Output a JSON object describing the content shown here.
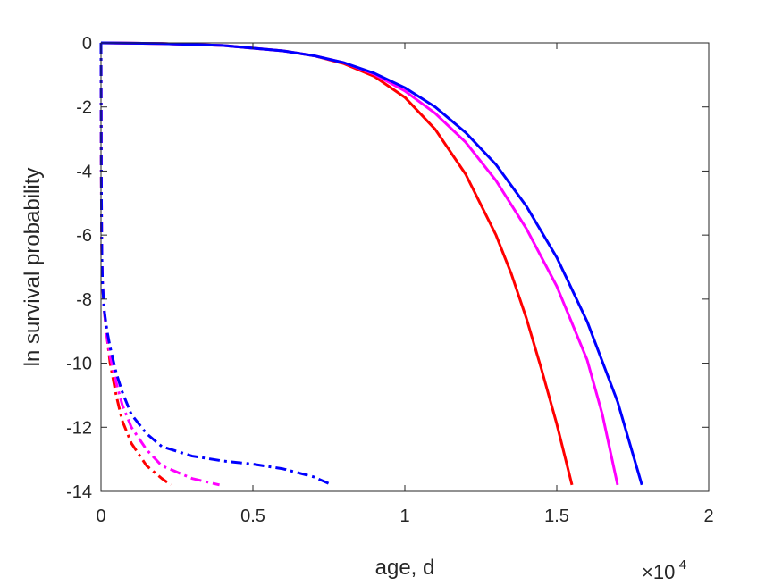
{
  "chart_data": {
    "type": "line",
    "xlabel": "age, d",
    "ylabel": "ln survival probability",
    "x_multiplier_label": {
      "base": "×10",
      "exponent": "4"
    },
    "xlim": [
      0,
      2
    ],
    "ylim": [
      -14,
      0
    ],
    "x_ticks": [
      0,
      0.5,
      1,
      1.5,
      2
    ],
    "x_tick_labels": [
      "0",
      "0.5",
      "1",
      "1.5",
      "2"
    ],
    "y_ticks": [
      0,
      -2,
      -4,
      -6,
      -8,
      -10,
      -12,
      -14
    ],
    "y_tick_labels": [
      "0",
      "-2",
      "-4",
      "-6",
      "-8",
      "-10",
      "-12",
      "-14"
    ],
    "grid": false,
    "legend": false,
    "series": [
      {
        "color": "#ff0000",
        "style": "solid",
        "x": [
          0,
          0.2,
          0.4,
          0.6,
          0.7,
          0.8,
          0.9,
          1.0,
          1.1,
          1.2,
          1.3,
          1.35,
          1.4,
          1.45,
          1.5,
          1.55
        ],
        "y": [
          0,
          -0.02,
          -0.08,
          -0.25,
          -0.4,
          -0.65,
          -1.05,
          -1.7,
          -2.7,
          -4.1,
          -6.0,
          -7.2,
          -8.6,
          -10.2,
          -11.9,
          -13.8
        ]
      },
      {
        "color": "#ff00ff",
        "style": "solid",
        "x": [
          0,
          0.2,
          0.4,
          0.6,
          0.7,
          0.8,
          0.9,
          1.0,
          1.1,
          1.2,
          1.3,
          1.4,
          1.5,
          1.6,
          1.65,
          1.7
        ],
        "y": [
          0,
          -0.02,
          -0.08,
          -0.25,
          -0.4,
          -0.62,
          -0.98,
          -1.5,
          -2.2,
          -3.1,
          -4.3,
          -5.8,
          -7.6,
          -9.9,
          -11.6,
          -13.8
        ]
      },
      {
        "color": "#0000ff",
        "style": "solid",
        "x": [
          0,
          0.2,
          0.4,
          0.6,
          0.7,
          0.8,
          0.9,
          1.0,
          1.1,
          1.2,
          1.3,
          1.4,
          1.5,
          1.6,
          1.7,
          1.78
        ],
        "y": [
          0,
          -0.02,
          -0.08,
          -0.25,
          -0.4,
          -0.62,
          -0.95,
          -1.4,
          -2.0,
          -2.8,
          -3.8,
          -5.1,
          -6.7,
          -8.7,
          -11.2,
          -13.8
        ]
      },
      {
        "color": "#ff0000",
        "style": "dashdot",
        "x": [
          0.0,
          0.0005,
          0.001,
          0.002,
          0.003,
          0.005,
          0.01,
          0.02,
          0.03,
          0.05,
          0.07,
          0.1,
          0.15,
          0.2,
          0.23
        ],
        "y": [
          0,
          -2.0,
          -4.0,
          -6.0,
          -6.8,
          -7.5,
          -8.3,
          -9.2,
          -10.0,
          -11.0,
          -11.8,
          -12.5,
          -13.2,
          -13.6,
          -13.8
        ]
      },
      {
        "color": "#ff00ff",
        "style": "dashdot",
        "x": [
          0.0,
          0.0005,
          0.001,
          0.002,
          0.003,
          0.005,
          0.01,
          0.02,
          0.03,
          0.05,
          0.07,
          0.1,
          0.15,
          0.2,
          0.3,
          0.39
        ],
        "y": [
          0,
          -2.0,
          -4.0,
          -6.0,
          -6.8,
          -7.5,
          -8.3,
          -9.2,
          -9.8,
          -10.6,
          -11.3,
          -12.0,
          -12.7,
          -13.2,
          -13.6,
          -13.8
        ]
      },
      {
        "color": "#0000ff",
        "style": "dashdot",
        "x": [
          0.0,
          0.0005,
          0.001,
          0.002,
          0.003,
          0.005,
          0.01,
          0.02,
          0.03,
          0.05,
          0.07,
          0.1,
          0.15,
          0.2,
          0.3,
          0.4,
          0.5,
          0.6,
          0.7,
          0.76
        ],
        "y": [
          0,
          -2.0,
          -4.0,
          -6.0,
          -6.8,
          -7.5,
          -8.3,
          -9.0,
          -9.5,
          -10.3,
          -10.9,
          -11.6,
          -12.2,
          -12.6,
          -12.9,
          -13.05,
          -13.15,
          -13.3,
          -13.55,
          -13.8
        ]
      }
    ]
  }
}
